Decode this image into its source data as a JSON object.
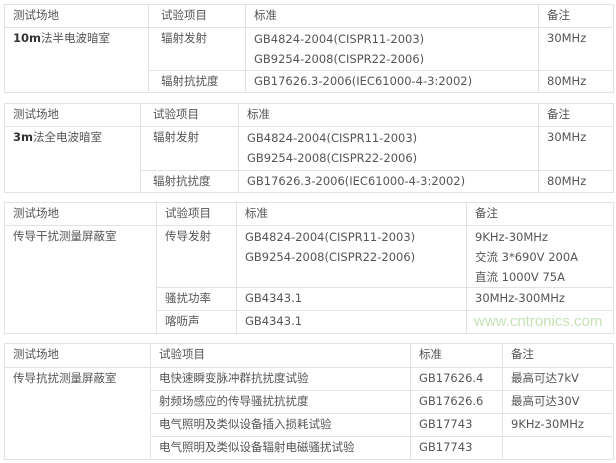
{
  "tables": [
    {
      "headers": [
        "测试场地",
        "试验项目",
        "标准",
        "备注"
      ],
      "site_bold": "10m",
      "site_rest": "法半电波暗室",
      "rows": [
        {
          "item": "辐射发射",
          "std": [
            "GB4824-2004(CISPR11-2003)",
            "GB9254-2008(CISPR22-2006)"
          ],
          "note": "30MHz"
        },
        {
          "item": "辐射抗扰度",
          "std": [
            "GB17626.3-2006(IEC61000-4-3:2002)"
          ],
          "note": "80MHz"
        }
      ]
    },
    {
      "headers": [
        "测试场地",
        "试验项目",
        "标准",
        "备注"
      ],
      "site_bold": "3m",
      "site_rest": "法全电波暗室",
      "rows": [
        {
          "item": "辐射发射",
          "std": [
            "GB4824-2004(CISPR11-2003)",
            "GB9254-2008(CISPR22-2006)"
          ],
          "note": "30MHz"
        },
        {
          "item": "辐射抗扰度",
          "std": [
            "GB17626.3-2006(IEC61000-4-3:2002)"
          ],
          "note": "80MHz"
        }
      ]
    },
    {
      "headers": [
        "测试场地",
        "试验项目",
        "标准",
        "备注"
      ],
      "site": "传导干扰测量屏蔽室",
      "rows": [
        {
          "item": "传导发射",
          "std": [
            "GB4824-2004(CISPR11-2003)",
            "GB9254-2008(CISPR22-2006)"
          ],
          "note": [
            "9KHz-30MHz",
            "交流 3*690V 200A",
            "直流 1000V 75A"
          ]
        },
        {
          "item": "骚扰功率",
          "std": "GB4343.1",
          "note": "30MHz-300MHz"
        },
        {
          "item": "喀呖声",
          "std": "GB4343.1",
          "note": ""
        }
      ]
    },
    {
      "headers": [
        "测试场地",
        "试验项目",
        "标准",
        "备注"
      ],
      "site": "传导抗扰测量屏蔽室",
      "rows": [
        {
          "item": "电快速瞬变脉冲群抗扰度试验",
          "std": "GB17626.4",
          "note": "最高可达7kV"
        },
        {
          "item": "射频场感应的传导骚扰抗扰度",
          "std": "GB17626.6",
          "note": "最高可达30V"
        },
        {
          "item": "电气照明及类似设备插入损耗试验",
          "std": "GB17743",
          "note": "9KHz-30MHz"
        },
        {
          "item": "电气照明及类似设备辐射电磁骚扰试验",
          "std": "GB17743",
          "note": ""
        }
      ]
    }
  ],
  "watermark": "www.cntronics.com"
}
